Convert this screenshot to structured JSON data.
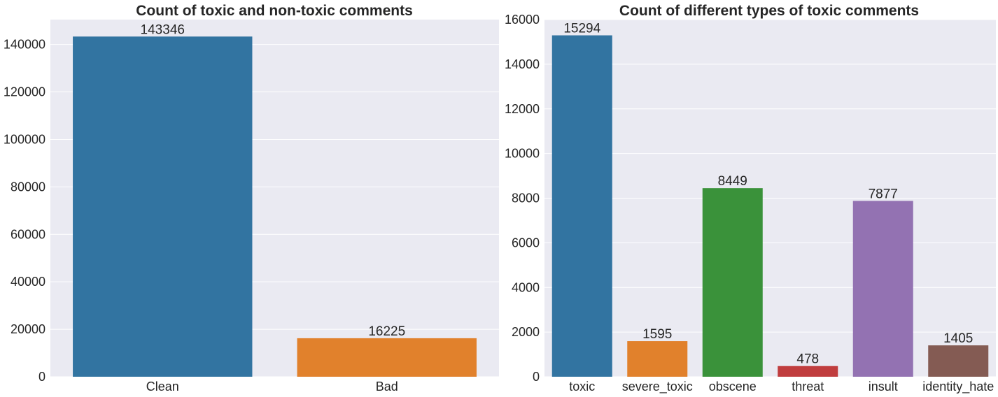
{
  "chart_data": [
    {
      "type": "bar",
      "title": "Count of toxic and non-toxic comments",
      "xlabel": "",
      "ylabel": "",
      "categories": [
        "Clean",
        "Bad"
      ],
      "values": [
        143346,
        16225
      ],
      "data_labels": [
        "143346",
        "16225"
      ],
      "colors": [
        "#3274a1",
        "#e1812c"
      ],
      "ylim": [
        0,
        150500
      ],
      "yticks": [
        0,
        20000,
        40000,
        60000,
        80000,
        100000,
        120000,
        140000
      ],
      "grid": true,
      "background": "#eaeaf2"
    },
    {
      "type": "bar",
      "title": "Count of different types of toxic comments",
      "xlabel": "",
      "ylabel": "",
      "categories": [
        "toxic",
        "severe_toxic",
        "obscene",
        "threat",
        "insult",
        "identity_hate"
      ],
      "values": [
        15294,
        1595,
        8449,
        478,
        7877,
        1405
      ],
      "data_labels": [
        "15294",
        "1595",
        "8449",
        "478",
        "7877",
        "1405"
      ],
      "colors": [
        "#3274a1",
        "#e1812c",
        "#3a923a",
        "#c03d3e",
        "#9372b2",
        "#845b53"
      ],
      "ylim": [
        0,
        16000
      ],
      "yticks": [
        0,
        2000,
        4000,
        6000,
        8000,
        10000,
        12000,
        14000,
        16000
      ],
      "grid": true,
      "background": "#eaeaf2"
    }
  ]
}
